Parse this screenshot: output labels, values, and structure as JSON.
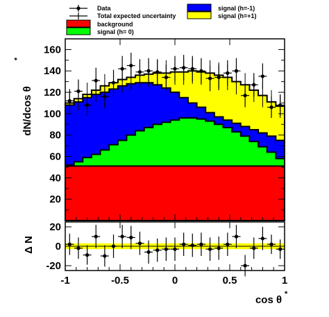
{
  "chart_data": [
    {
      "type": "area",
      "subtype": "stacked-histogram-with-data-points",
      "xlim": [
        -1,
        1
      ],
      "ylim": [
        0,
        170
      ],
      "ylabel": "dN/dcos θ",
      "ylabel_sup": "*",
      "yticks": [
        20,
        40,
        60,
        80,
        100,
        120,
        140,
        160
      ],
      "x_edges": [
        -1.0,
        -0.92,
        -0.84,
        -0.76,
        -0.68,
        -0.6,
        -0.52,
        -0.44,
        -0.36,
        -0.28,
        -0.2,
        -0.12,
        -0.04,
        0.04,
        0.12,
        0.2,
        0.28,
        0.36,
        0.44,
        0.52,
        0.6,
        0.68,
        0.76,
        0.84,
        0.92,
        1.0
      ],
      "series": [
        {
          "name": "background",
          "color": "#ff0000",
          "values": [
            51,
            51,
            51,
            51,
            51,
            51,
            51,
            51,
            51,
            51,
            51,
            51,
            51,
            51,
            51,
            51,
            51,
            51,
            51,
            51,
            51,
            51,
            51,
            51,
            51
          ]
        },
        {
          "name": "signal (h= 0)",
          "color": "#00ff00",
          "values": [
            52,
            55,
            59,
            62,
            66,
            71,
            75,
            80,
            84,
            87,
            90,
            92,
            94,
            96,
            96,
            95,
            93,
            90,
            87,
            83,
            79,
            74,
            69,
            64,
            58
          ]
        },
        {
          "name": "signal (h=-1)",
          "color": "#0000ff",
          "values": [
            108,
            111,
            115,
            118,
            120,
            123,
            126,
            128,
            129,
            129,
            127,
            124,
            120,
            115,
            110,
            106,
            101,
            97,
            94,
            91,
            88,
            85,
            82,
            79,
            75
          ]
        },
        {
          "name": "signal (h=+1)",
          "color": "#ffff00",
          "values": [
            110,
            114,
            118,
            122,
            126,
            129,
            132,
            134,
            136,
            137,
            138,
            138,
            139,
            139,
            140,
            139,
            138,
            136,
            134,
            130,
            127,
            122,
            117,
            111,
            107
          ]
        }
      ],
      "uncertainty": {
        "name": "Total expected uncertainty",
        "x": [
          -0.96,
          -0.88,
          -0.8,
          -0.72,
          -0.64,
          -0.56,
          -0.48,
          -0.4,
          -0.32,
          -0.24,
          -0.16,
          -0.08,
          0.0,
          0.08,
          0.16,
          0.24,
          0.32,
          0.4,
          0.48,
          0.56,
          0.64,
          0.72,
          0.8,
          0.88,
          0.96
        ],
        "y": [
          110,
          114,
          118,
          122,
          126,
          129,
          132,
          134,
          136,
          137,
          138,
          138,
          139,
          139,
          140,
          139,
          138,
          136,
          134,
          130,
          127,
          122,
          117,
          111,
          107
        ],
        "err": [
          11,
          11,
          11,
          11,
          11,
          12,
          12,
          12,
          12,
          12,
          12,
          12,
          12,
          12,
          12,
          12,
          12,
          12,
          12,
          12,
          11,
          11,
          11,
          11,
          11
        ]
      },
      "data": {
        "name": "Data",
        "x": [
          -0.96,
          -0.88,
          -0.8,
          -0.72,
          -0.64,
          -0.56,
          -0.48,
          -0.4,
          -0.32,
          -0.24,
          -0.16,
          -0.08,
          0.0,
          0.08,
          0.16,
          0.24,
          0.32,
          0.4,
          0.48,
          0.56,
          0.64,
          0.72,
          0.8,
          0.88,
          0.96
        ],
        "y": [
          112,
          121,
          108,
          131,
          116,
          129,
          142,
          145,
          139,
          140,
          139,
          134,
          142,
          143,
          142,
          140,
          133,
          134,
          138,
          140,
          117,
          127,
          135,
          106,
          108
        ],
        "err": [
          11,
          11,
          10,
          12,
          11,
          12,
          12,
          12,
          12,
          12,
          12,
          12,
          12,
          12,
          12,
          12,
          12,
          12,
          12,
          12,
          11,
          11,
          12,
          10,
          10
        ]
      }
    },
    {
      "type": "scatter",
      "subtype": "residuals",
      "xlim": [
        -1,
        1
      ],
      "ylim": [
        -25,
        25
      ],
      "xlabel": "cos θ",
      "xlabel_sup": "*",
      "ylabel": "Δ N",
      "yticks": [
        -20,
        0,
        20
      ],
      "xticks": [
        -1,
        -0.5,
        0,
        0.5,
        1
      ],
      "xtick_labels": [
        "-1",
        "-0.5",
        "0",
        "0.5",
        "1"
      ],
      "band": {
        "color": "#ffff00",
        "halfwidth": 3
      },
      "x": [
        -0.96,
        -0.88,
        -0.8,
        -0.72,
        -0.64,
        -0.56,
        -0.48,
        -0.4,
        -0.32,
        -0.24,
        -0.16,
        -0.08,
        0.0,
        0.08,
        0.16,
        0.24,
        0.32,
        0.4,
        0.48,
        0.56,
        0.64,
        0.72,
        0.8,
        0.88,
        0.96
      ],
      "y": [
        2,
        -2,
        -9,
        10,
        -10,
        0,
        10,
        9,
        3,
        -6,
        -4,
        -3,
        -3,
        2,
        1,
        2,
        -3,
        -2,
        2,
        10,
        -20,
        -2,
        8,
        2,
        -3
      ],
      "err": [
        11,
        11,
        10,
        12,
        11,
        12,
        12,
        12,
        12,
        12,
        12,
        12,
        12,
        12,
        12,
        12,
        12,
        12,
        12,
        12,
        11,
        11,
        12,
        10,
        10
      ]
    }
  ],
  "legend": {
    "left": [
      {
        "label": "Data",
        "kind": "marker-errorbar"
      },
      {
        "label": "Total expected uncertainty",
        "kind": "cross"
      },
      {
        "label": "background",
        "kind": "box",
        "color": "#ff0000"
      },
      {
        "label": "signal (h= 0)",
        "kind": "box",
        "color": "#00ff00"
      }
    ],
    "right": [
      {
        "label": "signal (h=-1)",
        "kind": "box",
        "color": "#0000ff"
      },
      {
        "label": "signal (h=+1)",
        "kind": "box",
        "color": "#ffff00"
      }
    ]
  }
}
